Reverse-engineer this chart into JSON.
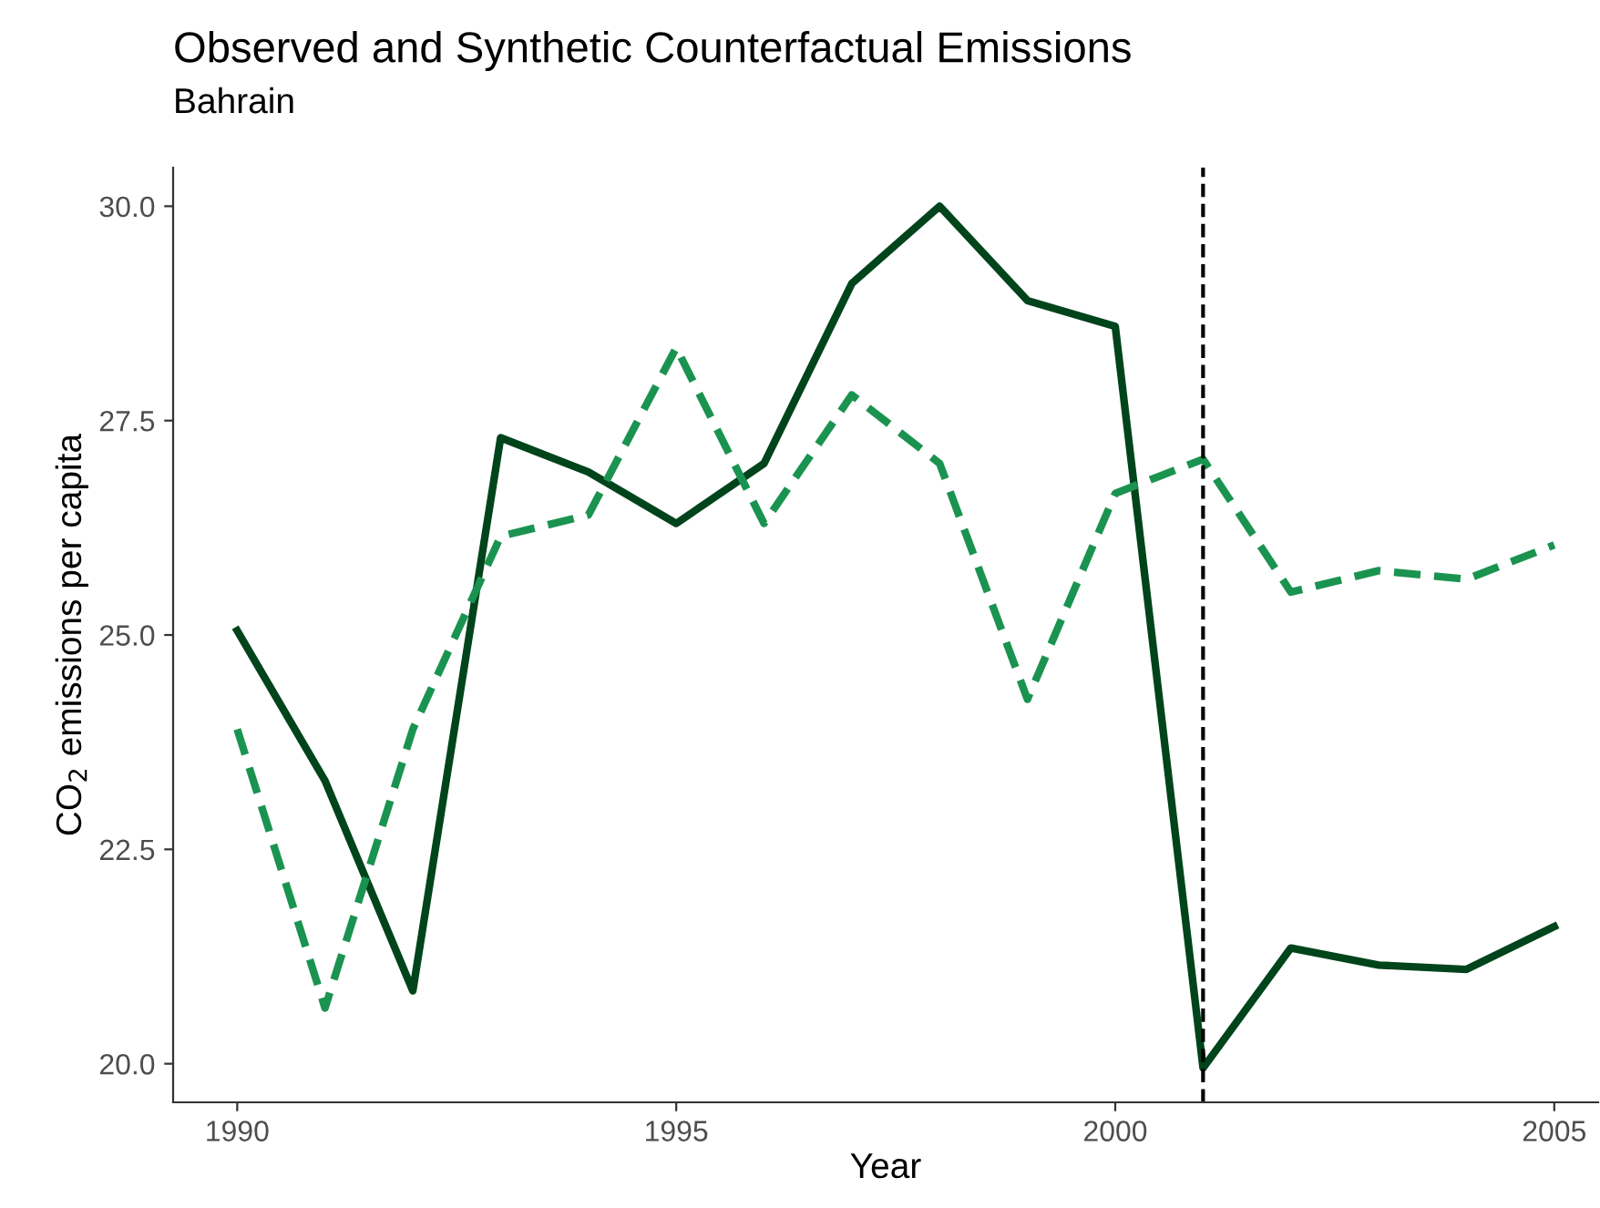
{
  "chart_data": {
    "type": "line",
    "title": "Observed and Synthetic Counterfactual Emissions",
    "subtitle": "Bahrain",
    "xlabel": "Year",
    "ylabel": "CO$_{2}$ emissions per capita",
    "x": [
      1990,
      1991,
      1992,
      1993,
      1994,
      1995,
      1996,
      1997,
      1998,
      1999,
      2000,
      2001,
      2002,
      2003,
      2004,
      2005
    ],
    "series": [
      {
        "color": "#00441b",
        "line_style": "solid",
        "values": [
          25.05,
          23.3,
          20.85,
          27.3,
          26.9,
          26.3,
          27.0,
          29.1,
          30.0,
          28.9,
          28.6,
          19.95,
          21.35,
          21.15,
          21.1,
          21.6
        ]
      },
      {
        "color": "#1b9350",
        "line_style": "dashed",
        "values": [
          23.9,
          20.65,
          23.9,
          26.15,
          26.4,
          28.35,
          26.3,
          27.8,
          27.0,
          24.25,
          26.65,
          27.05,
          25.5,
          25.75,
          25.65,
          26.05
        ]
      }
    ],
    "xlim": [
      1989.27,
      2005.5
    ],
    "ylim": [
      19.55,
      30.45
    ],
    "xticks": [
      1990,
      1995,
      2000,
      2005
    ],
    "yticks": [
      {
        "value": 20,
        "label": "20.0"
      },
      {
        "value": 22.5,
        "label": "22.5"
      },
      {
        "value": 25,
        "label": "25.0"
      },
      {
        "value": 27.5,
        "label": "27.5"
      },
      {
        "value": 30,
        "label": "30.0"
      }
    ],
    "ref_lines": [
      {
        "axis": "x",
        "value": 2001,
        "color": "#000000",
        "line_style": "dashed"
      }
    ],
    "grid": false,
    "legend": false
  }
}
